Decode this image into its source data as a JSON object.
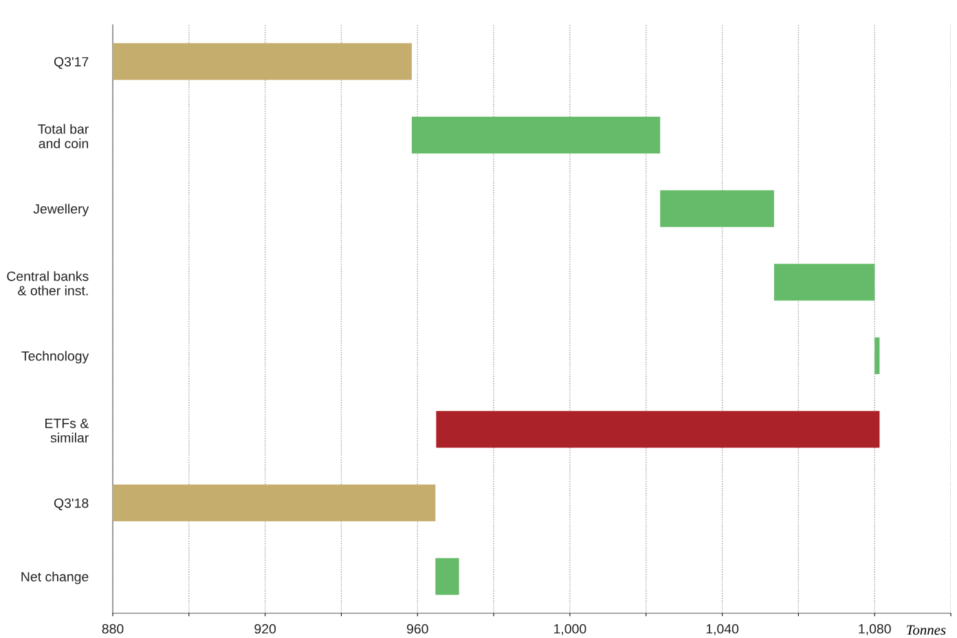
{
  "chart_data": {
    "type": "bar",
    "orientation": "horizontal",
    "xlabel": "Tonnes",
    "categories": [
      "Q3'17",
      "Total bar\nand coin",
      "Jewellery",
      "Central banks\n& other inst.",
      "Technology",
      "ETFs &\nsimilar",
      "Q3'18",
      "Net change"
    ],
    "base": [
      880,
      958.5,
      1023.7,
      1053.6,
      1080,
      1081.3,
      880,
      964.7
    ],
    "values": [
      78.5,
      65.2,
      29.9,
      26.4,
      1.3,
      -116.4,
      84.7,
      6.2
    ],
    "colors": [
      "#c5ae6d",
      "#66bb6a",
      "#66bb6a",
      "#66bb6a",
      "#66bb6a",
      "#ab2328",
      "#c5ae6d",
      "#66bb6a"
    ],
    "xlim": [
      880,
      1100
    ],
    "xticks": [
      880,
      {
        "value": 900,
        "label": null
      },
      920,
      {
        "value": 940,
        "label": null
      },
      960,
      {
        "value": 980,
        "label": null
      },
      {
        "value": 1000,
        "label": "1,000"
      },
      {
        "value": 1020,
        "label": null
      },
      {
        "value": 1040,
        "label": "1,040"
      },
      {
        "value": 1060,
        "label": null
      },
      {
        "value": 1080,
        "label": "1,080"
      },
      {
        "value": 1100,
        "label": null
      }
    ],
    "grid": "x",
    "legend": false
  }
}
